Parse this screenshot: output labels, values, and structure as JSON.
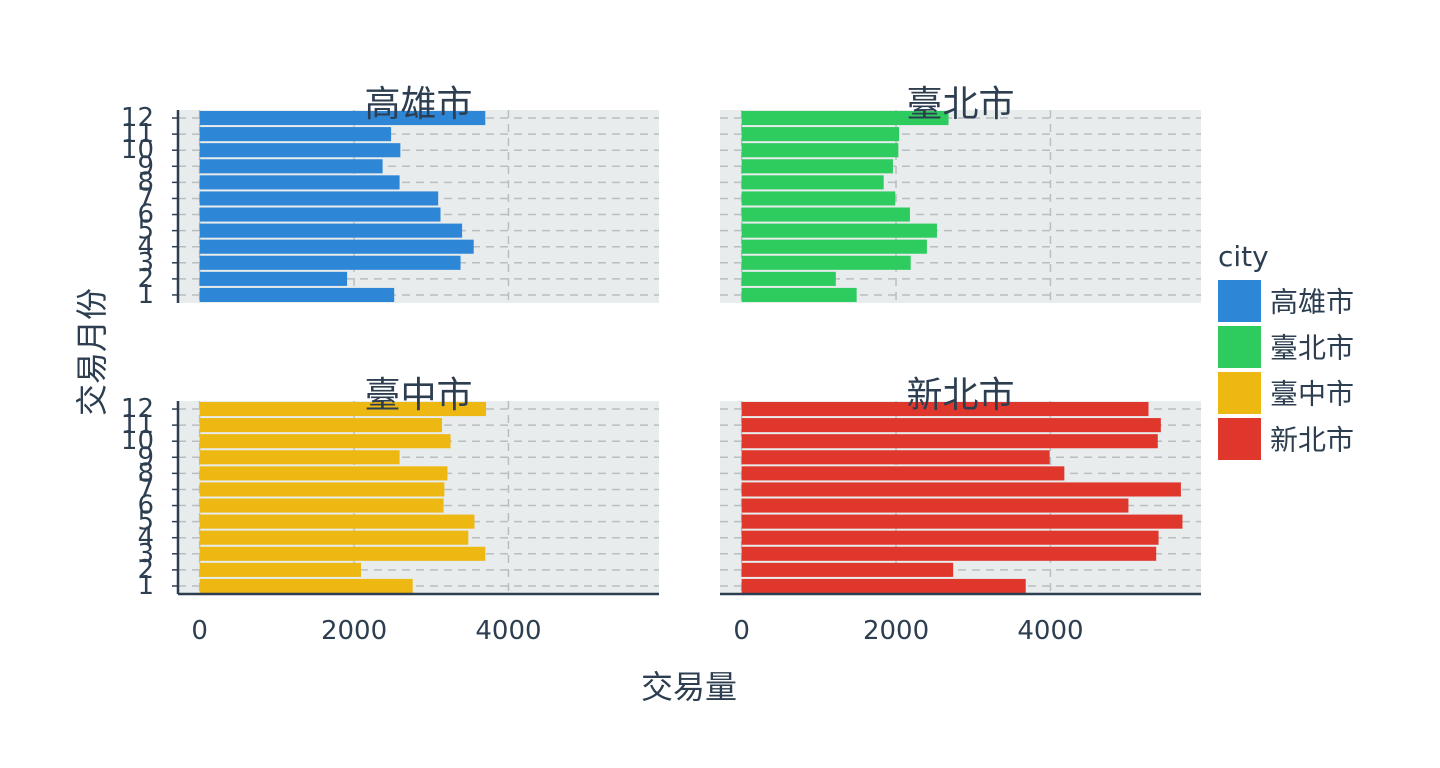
{
  "chart_data": {
    "type": "bar",
    "orientation": "horizontal",
    "facets": [
      "高雄市",
      "臺北市",
      "臺中市",
      "新北市"
    ],
    "categories": [
      "1",
      "2",
      "3",
      "4",
      "5",
      "6",
      "7",
      "8",
      "9",
      "10",
      "11",
      "12"
    ],
    "series": [
      {
        "name": "高雄市",
        "color": "#2e86d6",
        "values": [
          2520,
          1910,
          3380,
          3550,
          3400,
          3120,
          3090,
          2590,
          2370,
          2600,
          2480,
          3700
        ]
      },
      {
        "name": "臺北市",
        "color": "#2ecc5f",
        "values": [
          1490,
          1220,
          2190,
          2400,
          2530,
          2180,
          1990,
          1840,
          1960,
          2030,
          2040,
          2680
        ]
      },
      {
        "name": "臺中市",
        "color": "#edb812",
        "values": [
          2760,
          2090,
          3700,
          3480,
          3560,
          3160,
          3170,
          3210,
          2590,
          3250,
          3140,
          3710
        ]
      },
      {
        "name": "新北市",
        "color": "#e0372d",
        "values": [
          3680,
          2740,
          5370,
          5400,
          5710,
          5010,
          5690,
          4180,
          3990,
          5390,
          5430,
          5270
        ]
      }
    ],
    "xlabel": "交易量",
    "ylabel": "交易月份",
    "xticks": [
      "0",
      "2000",
      "4000"
    ],
    "xlim": [
      -280,
      5950
    ],
    "legend": {
      "title": "city",
      "placement": "right"
    },
    "grid": true
  }
}
